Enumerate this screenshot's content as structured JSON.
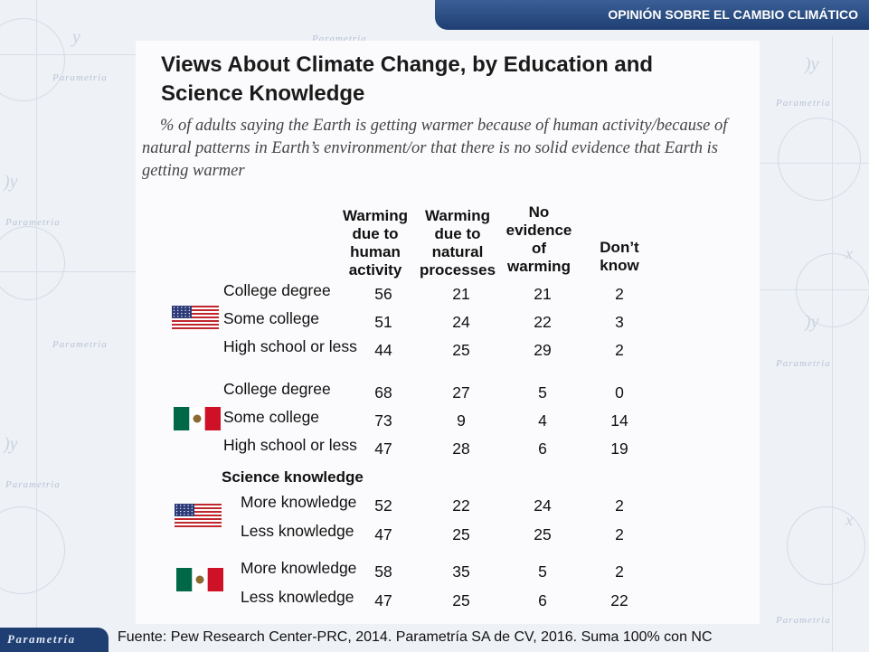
{
  "header": {
    "title": "OPINIÓN SOBRE EL CAMBIO CLIMÁTICO"
  },
  "brand": {
    "name": "Parametría"
  },
  "watermark": {
    "word": "Parametria"
  },
  "footer": {
    "source": "Fuente: Pew Research Center-PRC, 2014. Parametría SA de CV, 2016. Suma 100% con NC"
  },
  "chart_data": {
    "type": "table",
    "title": "Views About Climate Change, by Education and Science Knowledge",
    "subtitle": "% of adults saying the Earth is getting warmer because of human activity/because of natural patterns in Earth’s environment/or that there is no solid evidence that Earth is getting warmer",
    "columns": [
      "Warming due to human activity",
      "Warming due to natural processes",
      "No evidence of warming",
      "Don’t know"
    ],
    "section_label": "Science knowledge",
    "groups": [
      {
        "flag": "us-flag",
        "rows": [
          {
            "label": "College degree",
            "values": [
              56,
              21,
              21,
              2
            ]
          },
          {
            "label": "Some college",
            "values": [
              51,
              24,
              22,
              3
            ]
          },
          {
            "label": "High school or less",
            "values": [
              44,
              25,
              29,
              2
            ]
          }
        ]
      },
      {
        "flag": "mexico-flag",
        "rows": [
          {
            "label": "College degree",
            "values": [
              68,
              27,
              5,
              0
            ]
          },
          {
            "label": "Some college",
            "values": [
              73,
              9,
              4,
              14
            ]
          },
          {
            "label": "High school or less",
            "values": [
              47,
              28,
              6,
              19
            ]
          }
        ]
      },
      {
        "flag": "us-flag",
        "rows": [
          {
            "label": "More knowledge",
            "values": [
              52,
              22,
              24,
              2
            ]
          },
          {
            "label": "Less knowledge",
            "values": [
              47,
              25,
              25,
              2
            ]
          }
        ]
      },
      {
        "flag": "mexico-flag",
        "rows": [
          {
            "label": "More knowledge",
            "values": [
              58,
              35,
              5,
              2
            ]
          },
          {
            "label": "Less knowledge",
            "values": [
              47,
              25,
              6,
              22
            ]
          }
        ]
      }
    ]
  }
}
